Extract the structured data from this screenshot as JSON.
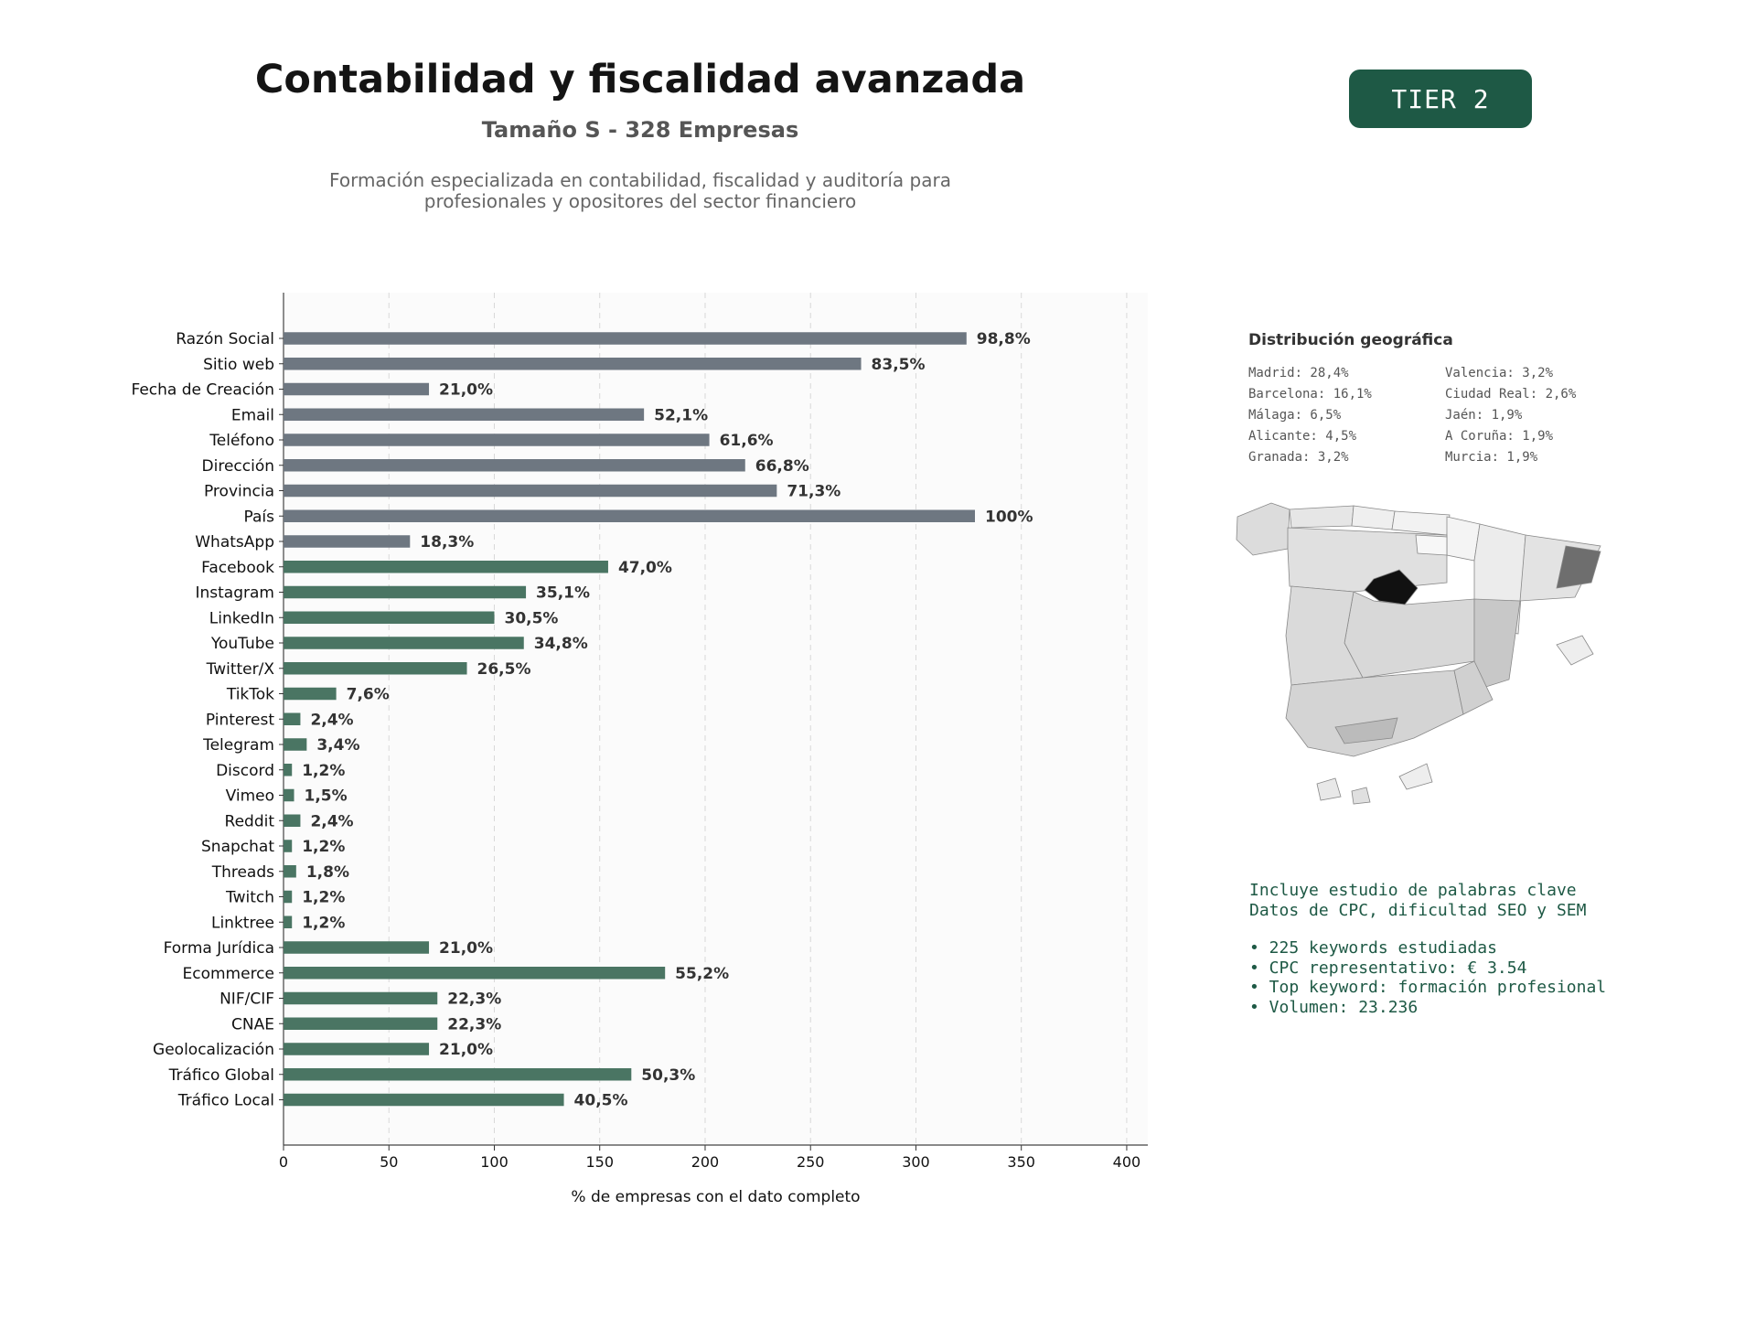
{
  "header": {
    "title": "Contabilidad y fiscalidad avanzada",
    "subtitle": "Tamaño S - 328 Empresas",
    "description_lines": [
      "Formación especializada en contabilidad, fiscalidad y auditoría para",
      "profesionales y opositores del sector financiero"
    ],
    "tier_badge": "TIER 2"
  },
  "colors": {
    "contact_bar": "#6e7781",
    "social_bar": "#4a7563",
    "accent": "#1e5945"
  },
  "chart_data": {
    "type": "bar",
    "orientation": "horizontal",
    "xlabel": "% de empresas con el dato completo",
    "ylabel": "",
    "xlim": [
      0,
      410
    ],
    "xticks": [
      0,
      50,
      100,
      150,
      200,
      250,
      300,
      350,
      400
    ],
    "grid": "vertical dashed",
    "categories": [
      "Razón Social",
      "Sitio web",
      "Fecha de Creación",
      "Email",
      "Teléfono",
      "Dirección",
      "Provincia",
      "País",
      "WhatsApp",
      "Facebook",
      "Instagram",
      "LinkedIn",
      "YouTube",
      "Twitter/X",
      "TikTok",
      "Pinterest",
      "Telegram",
      "Discord",
      "Vimeo",
      "Reddit",
      "Snapchat",
      "Threads",
      "Twitch",
      "Linktree",
      "Forma Jurídica",
      "Ecommerce",
      "NIF/CIF",
      "CNAE",
      "Geolocalización",
      "Tráfico Global",
      "Tráfico Local"
    ],
    "values": [
      324,
      274,
      69,
      171,
      202,
      219,
      234,
      328,
      60,
      154,
      115,
      100,
      114,
      87,
      25,
      8,
      11,
      4,
      5,
      8,
      4,
      6,
      4,
      4,
      69,
      181,
      73,
      73,
      69,
      165,
      133
    ],
    "labels": [
      "98,8%",
      "83,5%",
      "21,0%",
      "52,1%",
      "61,6%",
      "66,8%",
      "71,3%",
      "100%",
      "18,3%",
      "47,0%",
      "35,1%",
      "30,5%",
      "34,8%",
      "26,5%",
      "7,6%",
      "2,4%",
      "3,4%",
      "1,2%",
      "1,5%",
      "2,4%",
      "1,2%",
      "1,8%",
      "1,2%",
      "1,2%",
      "21,0%",
      "55,2%",
      "22,3%",
      "22,3%",
      "21,0%",
      "50,3%",
      "40,5%"
    ],
    "groups": [
      "contact",
      "contact",
      "contact",
      "contact",
      "contact",
      "contact",
      "contact",
      "contact",
      "contact",
      "social",
      "social",
      "social",
      "social",
      "social",
      "social",
      "social",
      "social",
      "social",
      "social",
      "social",
      "social",
      "social",
      "social",
      "social",
      "social",
      "social",
      "social",
      "social",
      "social",
      "social",
      "social"
    ]
  },
  "geo": {
    "title": "Distribución geográfica",
    "items": [
      "Madrid: 28,4%",
      "Valencia: 3,2%",
      "Barcelona: 16,1%",
      "Ciudad Real: 2,6%",
      "Málaga: 6,5%",
      "Jaén: 1,9%",
      "Alicante: 4,5%",
      "A Coruña: 1,9%",
      "Granada: 3,2%",
      "Murcia: 1,9%"
    ]
  },
  "keywords": {
    "line1": "Incluye estudio de palabras clave",
    "line2": "Datos de CPC, dificultad SEO y SEM",
    "bullets": [
      "• 225 keywords estudiadas",
      "• CPC representativo: € 3.54",
      "• Top keyword: formación profesional",
      "• Volumen: 23.236"
    ]
  }
}
